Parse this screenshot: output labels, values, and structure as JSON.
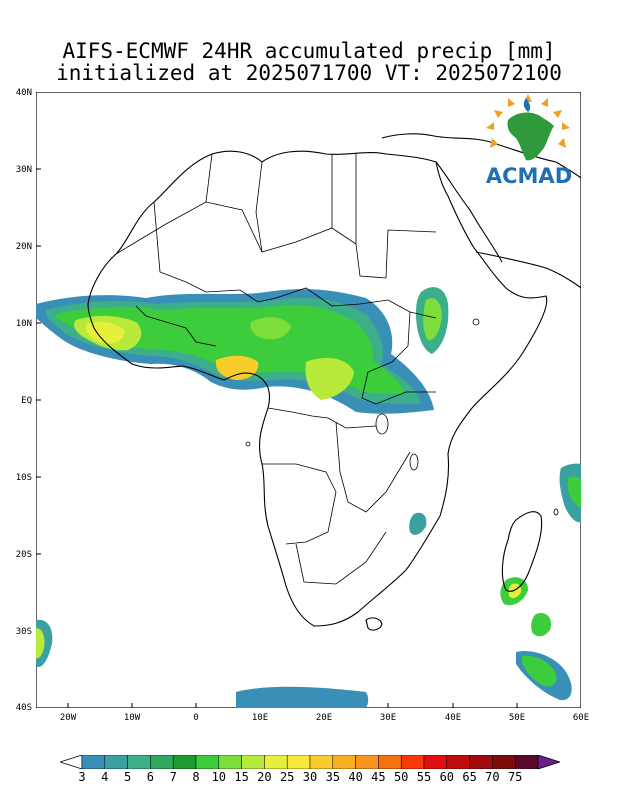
{
  "title": {
    "line1": "AIFS-ECMWF 24HR accumulated precip [mm]",
    "line2": "initialized at 2025071700 VT: 2025072100"
  },
  "logo": {
    "text": "ACMAD"
  },
  "axes": {
    "y_ticks": [
      "40N",
      "30N",
      "20N",
      "10N",
      "EQ",
      "10S",
      "20S",
      "30S",
      "40S"
    ],
    "x_ticks": [
      "20W",
      "10W",
      "0",
      "10E",
      "20E",
      "30E",
      "40E",
      "50E",
      "60E"
    ],
    "lon_range": [
      -25,
      60
    ],
    "lat_range": [
      -40,
      40
    ]
  },
  "colorbar": {
    "labels": [
      "3",
      "4",
      "5",
      "6",
      "7",
      "8",
      "10",
      "15",
      "20",
      "25",
      "30",
      "35",
      "40",
      "45",
      "50",
      "55",
      "60",
      "65",
      "70",
      "75"
    ],
    "colors": [
      "#3a8fb7",
      "#3aa0a0",
      "#3cae8a",
      "#2fa75c",
      "#1c9a2e",
      "#3ccc3c",
      "#7ddd3a",
      "#b7ea3a",
      "#e6f03a",
      "#f8e83a",
      "#f8cc2a",
      "#f8b020",
      "#f89420",
      "#f87010",
      "#f83a0a",
      "#e01010",
      "#c00c0c",
      "#a00a0a",
      "#7f0a0a",
      "#5a0a28",
      "#6a1f8c"
    ]
  }
}
